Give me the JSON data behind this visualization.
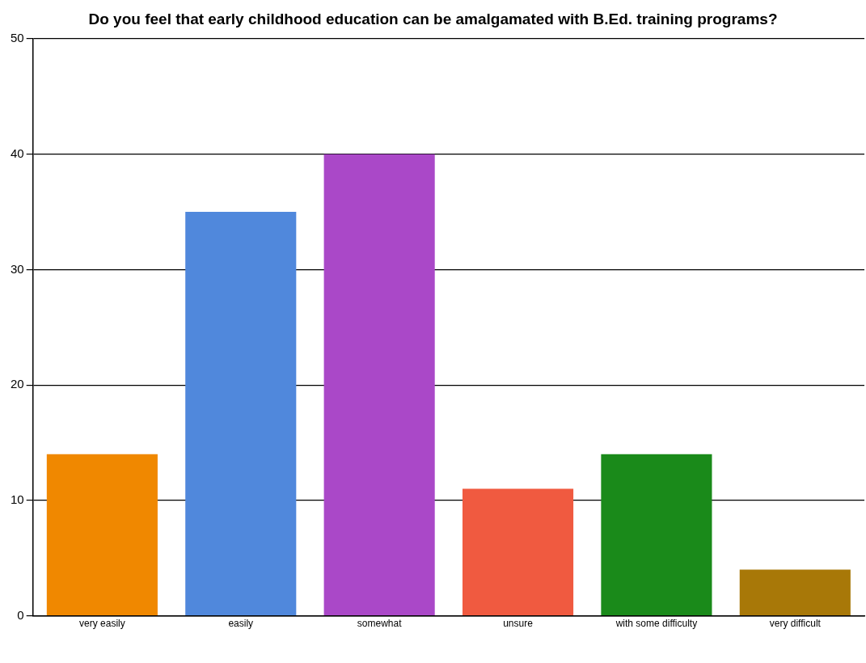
{
  "chart_data": {
    "type": "bar",
    "title": "Do you feel that early childhood education can be amalgamated with B.Ed. training programs?",
    "categories": [
      "very easily",
      "easily",
      "somewhat",
      "unsure",
      "with some difficulty",
      "very difficult"
    ],
    "values": [
      14,
      35,
      40,
      11,
      14,
      4
    ],
    "colors": [
      "#f08800",
      "#5088dc",
      "#aa48c8",
      "#f05a40",
      "#1a8a1a",
      "#a87808"
    ],
    "ylim": [
      0,
      50
    ],
    "yticks": [
      0,
      10,
      20,
      30,
      40,
      50
    ],
    "grid": "y"
  }
}
